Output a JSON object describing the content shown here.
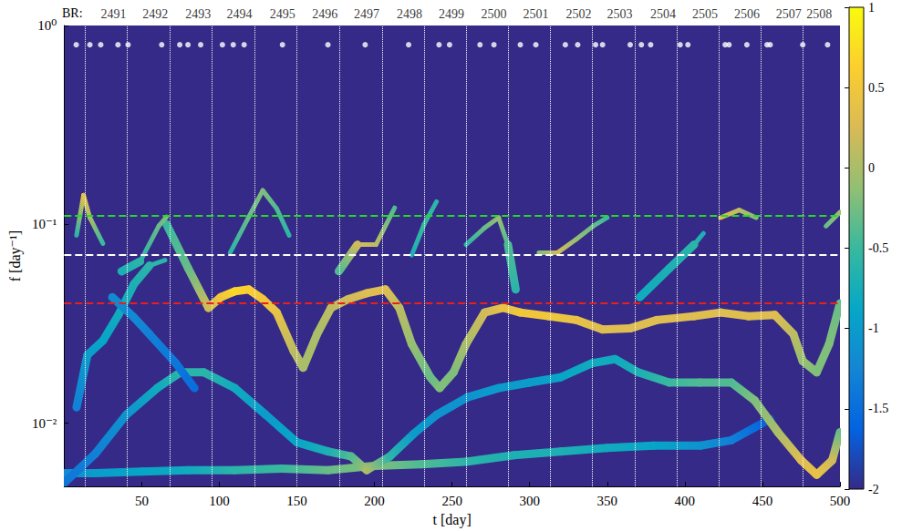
{
  "chart_data": {
    "type": "heatmap",
    "xlabel": "t [day]",
    "ylabel": "f [day⁻¹]",
    "log": "y",
    "grid": false,
    "xlim": [
      0,
      500
    ],
    "xticks": [
      50,
      100,
      150,
      200,
      250,
      300,
      350,
      400,
      450,
      500
    ],
    "ylim": [
      0.0048,
      1
    ],
    "yticks": [
      {
        "value": 0.01,
        "label": "10⁻²"
      },
      {
        "value": 0.1,
        "label": "10⁻¹"
      },
      {
        "value": 1,
        "label": "10⁰"
      }
    ],
    "colorbar": {
      "range": [
        -2,
        1
      ],
      "ticks": [
        -2,
        -1.5,
        -1,
        -0.5,
        0,
        0.5,
        1
      ]
    },
    "ridges": [
      {
        "t": [
          0,
          20,
          50,
          80,
          110,
          140,
          170,
          200,
          230,
          260,
          290,
          320,
          350,
          380,
          410,
          430,
          445,
          455
        ],
        "f": [
          0.0056,
          0.0056,
          0.0057,
          0.0058,
          0.0058,
          0.0059,
          0.0058,
          0.0061,
          0.0062,
          0.0064,
          0.0069,
          0.0072,
          0.0075,
          0.0077,
          0.0077,
          0.0082,
          0.0095,
          0.0105
        ],
        "power": [
          -1.2,
          -1,
          -0.9,
          -0.8,
          -0.6,
          -0.5,
          -0.3,
          -0.2,
          -0.4,
          -0.6,
          -0.7,
          -0.7,
          -0.8,
          -0.9,
          -1.1,
          -1.3,
          -1.5,
          -1.7
        ]
      },
      {
        "t": [
          0,
          20,
          40,
          60,
          75,
          90,
          110,
          130,
          150,
          170,
          185,
          195,
          210,
          225,
          240,
          260,
          280,
          300,
          320,
          340,
          355,
          370,
          390,
          410,
          430,
          445,
          460,
          475,
          485,
          495,
          500
        ],
        "f": [
          0.005,
          0.007,
          0.011,
          0.015,
          0.018,
          0.018,
          0.015,
          0.011,
          0.008,
          0.0072,
          0.0068,
          0.0058,
          0.0068,
          0.0088,
          0.011,
          0.0135,
          0.015,
          0.016,
          0.017,
          0.02,
          0.021,
          0.018,
          0.016,
          0.016,
          0.016,
          0.013,
          0.009,
          0.0065,
          0.0055,
          0.0065,
          0.009
        ],
        "power": [
          -1.4,
          -1.3,
          -1.1,
          -0.8,
          -0.6,
          -0.6,
          -0.8,
          -1,
          -0.9,
          -0.7,
          -0.4,
          0,
          -0.6,
          -1,
          -1.1,
          -1.1,
          -1,
          -1,
          -0.9,
          -0.8,
          -0.8,
          -0.7,
          -0.5,
          -0.4,
          -0.4,
          -0.2,
          0,
          0.3,
          0.4,
          0.2,
          -0.3
        ]
      },
      {
        "t": [
          8,
          15,
          25,
          35,
          45,
          55,
          65
        ],
        "f": [
          0.012,
          0.022,
          0.026,
          0.035,
          0.05,
          0.062,
          0.066
        ],
        "power": [
          -1.3,
          -1,
          -0.9,
          -0.8,
          -0.7,
          -0.6,
          -0.6
        ]
      },
      {
        "t": [
          31,
          45,
          55,
          72,
          84
        ],
        "f": [
          0.043,
          0.034,
          0.028,
          0.02,
          0.015
        ],
        "power": [
          -1.2,
          -1.2,
          -1.3,
          -1.4,
          -1.5
        ]
      },
      {
        "t": [
          66,
          80,
          93,
          101,
          110,
          119,
          128,
          137,
          148,
          154,
          163,
          172,
          183,
          195,
          207,
          216,
          224,
          236,
          242,
          251,
          259,
          271,
          283,
          294,
          312,
          330,
          347,
          365,
          382,
          406,
          423,
          441,
          458,
          470,
          476,
          485,
          493,
          500
        ],
        "f": [
          0.1,
          0.06,
          0.038,
          0.043,
          0.046,
          0.047,
          0.042,
          0.036,
          0.023,
          0.019,
          0.028,
          0.038,
          0.042,
          0.045,
          0.047,
          0.038,
          0.025,
          0.017,
          0.015,
          0.018,
          0.025,
          0.036,
          0.038,
          0.036,
          0.0345,
          0.033,
          0.0296,
          0.03,
          0.033,
          0.0345,
          0.036,
          0.0345,
          0.035,
          0.028,
          0.0205,
          0.018,
          0.025,
          0.04
        ],
        "power": [
          -0.5,
          -0.3,
          0.2,
          0.5,
          0.7,
          0.6,
          0.5,
          0.4,
          0.1,
          0,
          0,
          0.1,
          0.2,
          0.3,
          0.3,
          0.1,
          -0.1,
          -0.3,
          -0.2,
          -0.2,
          0,
          0.2,
          0.4,
          0.5,
          0.5,
          0.4,
          0.3,
          0.3,
          0.3,
          0.3,
          0.3,
          0.3,
          0.3,
          0.1,
          -0.1,
          -0.2,
          -0.2,
          -0.3
        ]
      },
      {
        "t": [
          8,
          12.5,
          16.6,
          25
        ],
        "f": [
          0.088,
          0.14,
          0.108,
          0.08
        ],
        "power": [
          -0.6,
          0.4,
          0,
          -0.5
        ]
      },
      {
        "t": [
          37,
          49,
          61,
          66
        ],
        "f": [
          0.058,
          0.065,
          0.098,
          0.109
        ],
        "power": [
          -0.7,
          -0.6,
          -0.3,
          -0.2
        ]
      },
      {
        "t": [
          107,
          119,
          128,
          137,
          145
        ],
        "f": [
          0.072,
          0.109,
          0.148,
          0.12,
          0.088
        ],
        "power": [
          -0.6,
          -0.3,
          -0.2,
          -0.4,
          -0.6
        ]
      },
      {
        "t": [
          177,
          189,
          201,
          213
        ],
        "f": [
          0.058,
          0.079,
          0.079,
          0.121
        ],
        "power": [
          -0.4,
          0.2,
          0.1,
          -0.4
        ]
      },
      {
        "t": [
          224,
          232,
          240
        ],
        "f": [
          0.07,
          0.1,
          0.13
        ],
        "power": [
          -0.7,
          -0.5,
          -0.6
        ]
      },
      {
        "t": [
          259,
          271,
          280,
          286,
          291
        ],
        "f": [
          0.079,
          0.096,
          0.108,
          0.079,
          0.047
        ],
        "power": [
          -0.6,
          -0.3,
          -0.1,
          -0.4,
          -0.6
        ]
      },
      {
        "t": [
          306,
          318,
          330,
          341,
          350
        ],
        "f": [
          0.072,
          0.072,
          0.084,
          0.098,
          0.108
        ],
        "power": [
          -0.2,
          0.2,
          -0.1,
          -0.3,
          -0.5
        ]
      },
      {
        "t": [
          371,
          390,
          406,
          412
        ],
        "f": [
          0.043,
          0.06,
          0.079,
          0.09
        ],
        "power": [
          -0.8,
          -0.7,
          -0.6,
          -0.7
        ]
      },
      {
        "t": [
          423,
          435,
          446
        ],
        "f": [
          0.108,
          0.118,
          0.108
        ],
        "power": [
          0.3,
          0.1,
          -0.2
        ]
      },
      {
        "t": [
          491,
          500
        ],
        "f": [
          0.098,
          0.115
        ],
        "power": [
          -0.3,
          -0.1
        ]
      }
    ],
    "events": {
      "color": "#ffffff",
      "marker": "circle",
      "f": 0.8,
      "t": [
        7.8,
        16.6,
        23.6,
        34.7,
        41.2,
        62.9,
        74.5,
        79.8,
        88,
        102,
        109,
        116,
        140.7,
        170,
        194,
        222,
        241.6,
        248.4,
        268,
        277,
        294,
        304,
        323,
        331,
        342.5,
        347,
        364.8,
        372,
        378,
        397,
        402,
        426,
        428.5,
        440,
        453,
        455,
        476,
        492
      ]
    },
    "rotation_boundaries": {
      "color": "#ffffff",
      "line_style": "dotted",
      "t": [
        13.7,
        40.6,
        68,
        95,
        123,
        150,
        177.5,
        205,
        232,
        259,
        286,
        313,
        340,
        368,
        395,
        422,
        449,
        476
      ]
    },
    "rotation_prefix": "BR:",
    "rotations": [
      {
        "label": "2491",
        "t": 31.8
      },
      {
        "label": "2492",
        "t": 58.7
      },
      {
        "label": "2493",
        "t": 86.3
      },
      {
        "label": "2494",
        "t": 113
      },
      {
        "label": "2495",
        "t": 140.7
      },
      {
        "label": "2496",
        "t": 168
      },
      {
        "label": "2497",
        "t": 195
      },
      {
        "label": "2498",
        "t": 222.6
      },
      {
        "label": "2499",
        "t": 249.6
      },
      {
        "label": "2500",
        "t": 277
      },
      {
        "label": "2501",
        "t": 304
      },
      {
        "label": "2502",
        "t": 331.6
      },
      {
        "label": "2503",
        "t": 358
      },
      {
        "label": "2504",
        "t": 386
      },
      {
        "label": "2505",
        "t": 413
      },
      {
        "label": "2506",
        "t": 440
      },
      {
        "label": "2507",
        "t": 467
      },
      {
        "label": "2508",
        "t": 486.6
      }
    ],
    "reference_lines": [
      {
        "f": 0.108,
        "color": "#22dd22",
        "line_style": "dashed"
      },
      {
        "f": 0.072,
        "color": "#ffffff",
        "line_style": "dashed"
      },
      {
        "f": 0.036,
        "color": "#e8201a",
        "line_style": "dashed"
      }
    ]
  }
}
